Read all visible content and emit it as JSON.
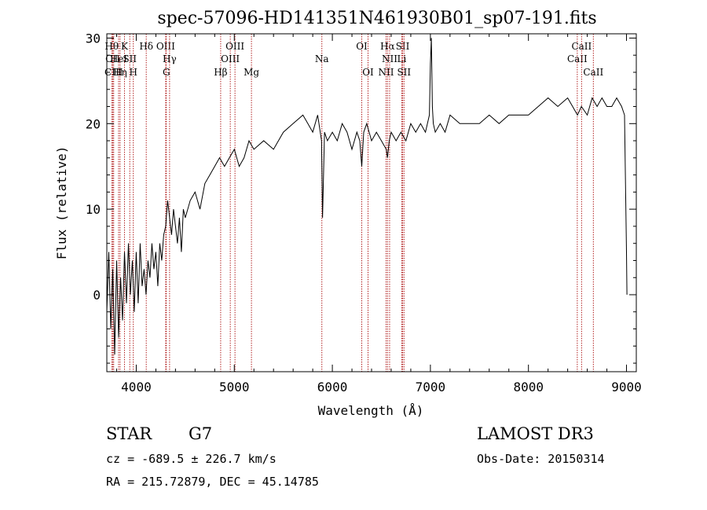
{
  "chart_data": {
    "type": "line",
    "title": "spec-57096-HD141351N461930B01_sp07-191.fits",
    "xlabel": "Wavelength (Å)",
    "ylabel": "Flux (relative)",
    "xlim": [
      3700,
      9100
    ],
    "ylim": [
      -9,
      30.5
    ],
    "xticks": [
      4000,
      5000,
      6000,
      7000,
      8000,
      9000
    ],
    "yticks": [
      0,
      10,
      20,
      30
    ],
    "grid": false,
    "line_color": "#000000",
    "marker_color": "#b22222",
    "series": [
      {
        "x": [
          3700,
          3720,
          3740,
          3760,
          3780,
          3800,
          3820,
          3840,
          3860,
          3880,
          3900,
          3920,
          3940,
          3960,
          3980,
          4000,
          4020,
          4040,
          4060,
          4080,
          4100,
          4120,
          4140,
          4160,
          4180,
          4200,
          4220,
          4240,
          4260,
          4280,
          4300,
          4320,
          4340,
          4360,
          4380,
          4400,
          4420,
          4440,
          4460,
          4480,
          4500,
          4550,
          4600,
          4650,
          4700,
          4750,
          4800,
          4850,
          4900,
          4950,
          5000,
          5050,
          5100,
          5150,
          5200,
          5300,
          5400,
          5500,
          5600,
          5700,
          5750,
          5800,
          5850,
          5890,
          5900,
          5920,
          5950,
          6000,
          6050,
          6100,
          6150,
          6200,
          6250,
          6280,
          6300,
          6320,
          6350,
          6400,
          6450,
          6500,
          6550,
          6563,
          6580,
          6600,
          6650,
          6700,
          6750,
          6800,
          6850,
          6900,
          6950,
          6990,
          7000,
          7010,
          7020,
          7030,
          7050,
          7100,
          7150,
          7200,
          7300,
          7400,
          7500,
          7600,
          7700,
          7800,
          7900,
          8000,
          8100,
          8200,
          8300,
          8400,
          8450,
          8500,
          8540,
          8600,
          8650,
          8700,
          8750,
          8800,
          8850,
          8900,
          8950,
          8980,
          9000,
          9005
        ],
        "y": [
          -2,
          5,
          -4,
          3,
          -7,
          4,
          -5,
          2,
          -3,
          5,
          -1,
          6,
          0,
          4,
          -2,
          5,
          -1,
          6,
          1,
          3,
          0,
          4,
          2,
          6,
          3,
          5,
          1,
          6,
          4,
          7,
          8,
          11,
          9,
          7,
          10,
          8,
          6,
          9,
          5,
          10,
          9,
          11,
          12,
          10,
          13,
          14,
          15,
          16,
          15,
          16,
          17,
          15,
          16,
          18,
          17,
          18,
          17,
          19,
          20,
          21,
          20,
          19,
          21,
          18,
          9,
          19,
          18,
          19,
          18,
          20,
          19,
          17,
          19,
          18,
          15,
          19,
          20,
          18,
          19,
          18,
          17,
          16,
          18,
          19,
          18,
          19,
          18,
          20,
          19,
          20,
          19,
          21,
          27,
          30,
          22,
          20,
          19,
          20,
          19,
          21,
          20,
          20,
          20,
          21,
          20,
          21,
          21,
          21,
          22,
          23,
          22,
          23,
          22,
          21,
          22,
          21,
          23,
          22,
          23,
          22,
          22,
          23,
          22,
          21,
          5,
          0
        ]
      }
    ],
    "line_markers": [
      {
        "x": 3750,
        "label": "Hθ",
        "row": 1
      },
      {
        "x": 3760,
        "label": "CII",
        "row": 2
      },
      {
        "x": 3770,
        "label": "CIII",
        "row": 3
      },
      {
        "x": 3820,
        "label": "HeI",
        "row": 2
      },
      {
        "x": 3835,
        "label": "Hη",
        "row": 3
      },
      {
        "x": 3880,
        "label": "K",
        "row": 1
      },
      {
        "x": 3934,
        "label": "SII",
        "row": 2
      },
      {
        "x": 3970,
        "label": "H",
        "row": 3
      },
      {
        "x": 4102,
        "label": "Hδ",
        "row": 1
      },
      {
        "x": 4300,
        "label": "OIII",
        "row": 1
      },
      {
        "x": 4340,
        "label": "Hγ",
        "row": 2
      },
      {
        "x": 4307,
        "label": "G",
        "row": 3
      },
      {
        "x": 4861,
        "label": "Hβ",
        "row": 3
      },
      {
        "x": 4959,
        "label": "OIII",
        "row": 2
      },
      {
        "x": 5007,
        "label": "OIII",
        "row": 1
      },
      {
        "x": 5175,
        "label": "Mg",
        "row": 3
      },
      {
        "x": 5893,
        "label": "Na",
        "row": 2
      },
      {
        "x": 6300,
        "label": "OI",
        "row": 1
      },
      {
        "x": 6364,
        "label": "OI",
        "row": 3
      },
      {
        "x": 6548,
        "label": "NII",
        "row": 3
      },
      {
        "x": 6563,
        "label": "Hα",
        "row": 1
      },
      {
        "x": 6584,
        "label": "NII",
        "row": 2
      },
      {
        "x": 6708,
        "label": "Li",
        "row": 2
      },
      {
        "x": 6717,
        "label": "SII",
        "row": 1
      },
      {
        "x": 6731,
        "label": "SII",
        "row": 3
      },
      {
        "x": 8498,
        "label": "CaII",
        "row": 2
      },
      {
        "x": 8542,
        "label": "CaII",
        "row": 1
      },
      {
        "x": 8662,
        "label": "CaII",
        "row": 3
      }
    ]
  },
  "info": {
    "class_label": "STAR",
    "subclass": "G7",
    "survey": "LAMOST DR3",
    "redshift_line": "cz = -689.5 ± 226.7 km/s",
    "obs_date_line": "Obs-Date: 20150314",
    "coords_line": "RA = 215.72879, DEC =  45.14785"
  }
}
